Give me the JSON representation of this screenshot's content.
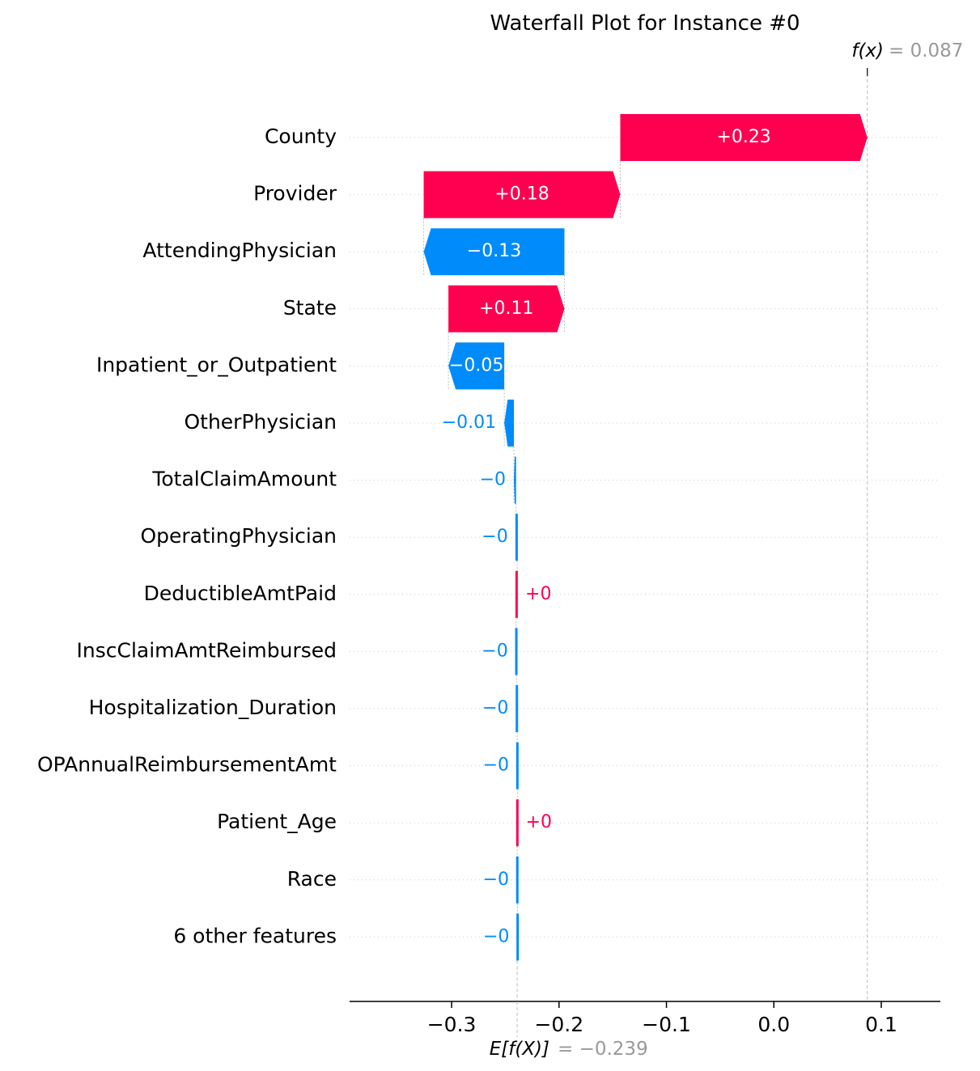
{
  "chart_data": {
    "type": "waterfall",
    "title": "Waterfall Plot for Instance #0",
    "base_value": -0.239,
    "base_value_text": "= −0.239",
    "base_label": "E[f(X)]",
    "output_value": 0.087,
    "output_value_text": "= 0.087",
    "output_label": "f(x)",
    "xlim": [
      -0.395,
      0.155
    ],
    "x_ticks": [
      -0.3,
      -0.2,
      -0.1,
      0.0,
      0.1
    ],
    "x_tick_labels": [
      "−0.3",
      "−0.2",
      "−0.1",
      "0.0",
      "0.1"
    ],
    "grid": "horizontal dotted per feature row",
    "features": [
      {
        "name": "County",
        "value": 0.23,
        "label": "+0.23"
      },
      {
        "name": "Provider",
        "value": 0.183,
        "label": "+0.18"
      },
      {
        "name": "AttendingPhysician",
        "value": -0.131,
        "label": "−0.13"
      },
      {
        "name": "State",
        "value": 0.108,
        "label": "+0.11"
      },
      {
        "name": "Inpatient_or_Outpatient",
        "value": -0.052,
        "label": "−0.05"
      },
      {
        "name": "OtherPhysician",
        "value": -0.009,
        "label": "−0.01"
      },
      {
        "name": "TotalClaimAmount",
        "value": -0.002,
        "label": "−0"
      },
      {
        "name": "OperatingPhysician",
        "value": -0.001,
        "label": "−0"
      },
      {
        "name": "DeductibleAmtPaid",
        "value": 0.001,
        "label": "+0"
      },
      {
        "name": "InscClaimAmtReimbursed",
        "value": -0.0005,
        "label": "−0"
      },
      {
        "name": "Hospitalization_Duration",
        "value": -0.0005,
        "label": "−0"
      },
      {
        "name": "OPAnnualReimbursementAmt",
        "value": -0.0004,
        "label": "−0"
      },
      {
        "name": "Patient_Age",
        "value": 0.0004,
        "label": "+0"
      },
      {
        "name": "Race",
        "value": -0.0003,
        "label": "−0"
      },
      {
        "name": "6 other features",
        "value": -0.0003,
        "label": "−0"
      }
    ],
    "colors": {
      "positive": "#ff0051",
      "negative": "#008bfb",
      "reference_line": "#bbbbbb",
      "value_text": "#999999"
    }
  }
}
